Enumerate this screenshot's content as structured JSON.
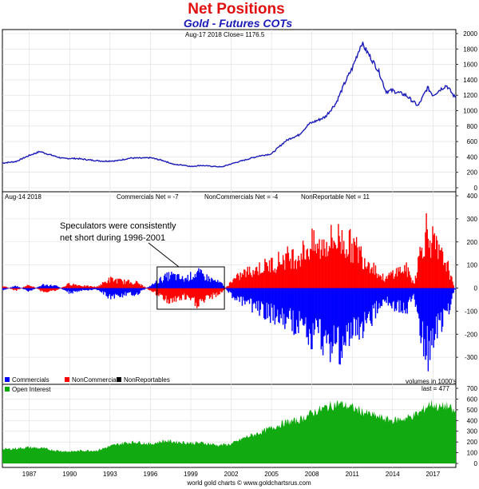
{
  "chart_data": {
    "title": "Net Positions",
    "subtitle": "Gold - Futures COTs",
    "footer": "world gold charts © www.goldchartsrus.com",
    "x_tick_labels": [
      "1987",
      "1990",
      "1993",
      "1996",
      "1999",
      "2002",
      "2005",
      "2008",
      "2011",
      "2014",
      "2017"
    ],
    "price_panel": {
      "type": "line",
      "header": "Aug-17 2018 Close= 1176.5",
      "color": "#1a1ab8",
      "ylim": [
        0,
        2000
      ],
      "yticks": [
        0,
        200,
        400,
        600,
        800,
        1000,
        1200,
        1400,
        1600,
        1800,
        2000
      ],
      "x": [
        1985.0,
        1986.0,
        1987.0,
        1987.8,
        1988.5,
        1989.5,
        1990.5,
        1991.5,
        1992.5,
        1993.5,
        1994.5,
        1995.5,
        1996.0,
        1997.0,
        1997.8,
        1998.5,
        1999.0,
        1999.7,
        2000.5,
        2001.3,
        2002.0,
        2003.0,
        2004.0,
        2005.0,
        2006.0,
        2006.5,
        2007.0,
        2007.8,
        2008.5,
        2009.0,
        2009.8,
        2010.5,
        2011.0,
        2011.7,
        2012.5,
        2013.0,
        2013.5,
        2014.0,
        2015.0,
        2015.9,
        2016.6,
        2017.0,
        2017.5,
        2018.0,
        2018.6
      ],
      "values": [
        320,
        340,
        420,
        470,
        430,
        380,
        380,
        360,
        345,
        350,
        385,
        385,
        390,
        350,
        300,
        295,
        275,
        290,
        280,
        270,
        310,
        360,
        410,
        440,
        600,
        650,
        680,
        830,
        880,
        920,
        1100,
        1380,
        1550,
        1880,
        1650,
        1500,
        1250,
        1260,
        1200,
        1060,
        1300,
        1200,
        1270,
        1330,
        1180
      ]
    },
    "cot_panel": {
      "type": "bar",
      "header": "Aug-14 2018",
      "label_commercials": "Commercials Net = -7",
      "label_noncommercials": "NonCommercials Net = -4",
      "label_nonreportable": "NonReportable Net = 11",
      "ylim": [
        -400,
        400
      ],
      "yticks": [
        -300,
        -200,
        -100,
        0,
        100,
        200,
        300,
        400
      ],
      "legend": [
        {
          "name": "Commercials",
          "color": "#0000ff"
        },
        {
          "name": "NonCommercials",
          "color": "#ff0000"
        },
        {
          "name": "NonReportables",
          "color": "#000000"
        }
      ],
      "units_note": "volumes in 1000's",
      "annotation": "Speculators were consistently net short during 1996-2001",
      "annotation_box_years": [
        1996.5,
        2001.5
      ],
      "x": [
        1985.0,
        1986.0,
        1987.0,
        1988.0,
        1989.0,
        1990.0,
        1991.0,
        1992.0,
        1993.0,
        1994.0,
        1995.0,
        1996.0,
        1996.8,
        1997.5,
        1998.5,
        1999.5,
        2000.5,
        2001.3,
        2002.0,
        2003.0,
        2004.0,
        2005.0,
        2006.0,
        2007.0,
        2008.0,
        2008.5,
        2009.0,
        2010.0,
        2010.8,
        2011.5,
        2012.0,
        2012.5,
        2013.0,
        2013.5,
        2014.0,
        2015.0,
        2015.6,
        2016.0,
        2016.5,
        2017.0,
        2017.5,
        2018.0,
        2018.6
      ],
      "noncommercials": [
        10,
        -10,
        15,
        -15,
        -10,
        20,
        10,
        5,
        40,
        30,
        25,
        -10,
        -40,
        -60,
        -40,
        -70,
        -40,
        -20,
        30,
        70,
        90,
        110,
        140,
        150,
        200,
        180,
        210,
        230,
        200,
        170,
        130,
        110,
        60,
        40,
        70,
        90,
        20,
        150,
        270,
        210,
        150,
        120,
        -4
      ],
      "commercials": [
        -10,
        10,
        -15,
        15,
        10,
        -20,
        -10,
        -5,
        -40,
        -30,
        -25,
        10,
        40,
        60,
        40,
        70,
        40,
        20,
        -30,
        -70,
        -90,
        -120,
        -150,
        -160,
        -230,
        -200,
        -240,
        -260,
        -230,
        -190,
        -150,
        -130,
        -70,
        -50,
        -80,
        -100,
        -30,
        -170,
        -300,
        -220,
        -160,
        -130,
        -7
      ]
    },
    "oi_panel": {
      "type": "area",
      "legend": [
        {
          "name": "Open Interest",
          "color": "#00aa00"
        }
      ],
      "last_label": "last = 477",
      "color": "#11aa11",
      "ylim": [
        0,
        700
      ],
      "yticks": [
        0,
        100,
        200,
        300,
        400,
        500,
        600,
        700
      ],
      "x": [
        1985.0,
        1986.0,
        1987.0,
        1988.0,
        1989.0,
        1990.0,
        1991.0,
        1992.0,
        1993.0,
        1994.0,
        1995.0,
        1996.0,
        1997.0,
        1998.0,
        1999.0,
        2000.0,
        2001.0,
        2002.0,
        2003.0,
        2004.0,
        2005.0,
        2006.0,
        2007.0,
        2008.0,
        2009.0,
        2010.0,
        2011.0,
        2012.0,
        2013.0,
        2014.0,
        2015.0,
        2016.0,
        2016.8,
        2017.5,
        2018.0,
        2018.6
      ],
      "values": [
        130,
        140,
        150,
        140,
        120,
        110,
        120,
        120,
        160,
        190,
        200,
        180,
        210,
        200,
        190,
        190,
        170,
        180,
        240,
        280,
        330,
        380,
        400,
        470,
        520,
        560,
        520,
        470,
        430,
        400,
        420,
        470,
        560,
        520,
        540,
        477
      ]
    }
  }
}
